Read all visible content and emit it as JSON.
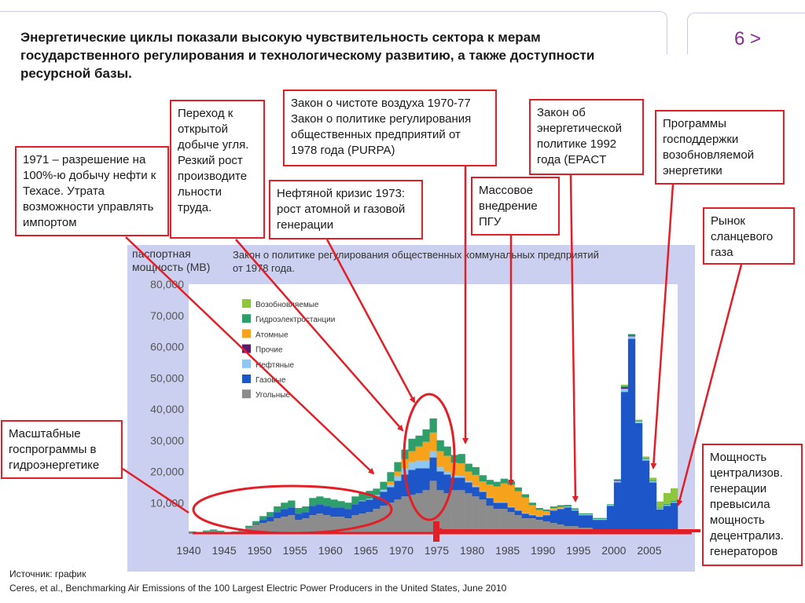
{
  "slide": {
    "title": "Энергетические циклы показали высокую чувствительность сектора к мерам государственного регулирования и технологическому развитию, а также доступности ресурсной базы.",
    "page_number": "6 >",
    "source_line1": "Источник: график",
    "source_line2": "Ceres,  et al., Benchmarking Air Emissions of the 100 Largest Electric Power Producers in the United States, June 2010"
  },
  "callouts": {
    "oil_texas": "1971 – разрешение на 100%-ю добычу нефти к Техасе. Утрата возможности управлять импортом",
    "coal_open": "Переход к открытой добыче угля. Резкий рост производите льности труда.",
    "clean_air": "Закон о чистоте воздуха 1970-77 Закон о политике регулирования общественных предприятий от 1978 года (PURPA)",
    "oil_crisis": "Нефтяной кризис 1973: рост атомной и газовой генерации",
    "epact": "Закон об энергетической политике 1992 года (EPACT",
    "ccgt": "Массовое внедрение ПГУ",
    "renewables_support": "Программы господдержки возобновляемой энергетики",
    "shale_gas": "Рынок сланцевого газа",
    "hydro_programs": "Масштабные госпрограммы в гидроэнергетике",
    "centralized": "Мощность централизов. генерации превысила мощность децентрализ. генераторов"
  },
  "colors": {
    "renewable": "#8dc63f",
    "hydro": "#2e9e6b",
    "nuclear": "#f7a21b",
    "other": "#5c1a73",
    "oil": "#8ec7f2",
    "gas": "#1d56c8",
    "coal": "#8c8c8c",
    "plot_bg": "#ffffff",
    "panel_bg": "#ccd0f0",
    "annotation": "#e21f26"
  },
  "chart_data": {
    "type": "bar",
    "stacked": true,
    "ylabel": "паспортная мощность (МВ)",
    "inner_note": "Закон о политике регулирования общественных коммунальных предприятий от 1978 года.",
    "ylim": [
      0,
      80000
    ],
    "yticks": [
      "80,000",
      "70,000",
      "60,000",
      "50,000",
      "40,000",
      "30,000",
      "20,000",
      "10,000"
    ],
    "xticks": [
      "1940",
      "1945",
      "1950",
      "1955",
      "1960",
      "1965",
      "1970",
      "1975",
      "1980",
      "1985",
      "1990",
      "1995",
      "2000",
      "2005"
    ],
    "legend_position": "upper-left",
    "legend_order": [
      "Возобновляемые",
      "Гидроэлектростанции",
      "Атомные",
      "Прочие",
      "Нефтяные",
      "Газовые",
      "Угольные"
    ],
    "years": [
      1940,
      1941,
      1942,
      1943,
      1944,
      1945,
      1946,
      1947,
      1948,
      1949,
      1950,
      1951,
      1952,
      1953,
      1954,
      1955,
      1956,
      1957,
      1958,
      1959,
      1960,
      1961,
      1962,
      1963,
      1964,
      1965,
      1966,
      1967,
      1968,
      1969,
      1970,
      1971,
      1972,
      1973,
      1974,
      1975,
      1976,
      1977,
      1978,
      1979,
      1980,
      1981,
      1982,
      1983,
      1984,
      1985,
      1986,
      1987,
      1988,
      1989,
      1990,
      1991,
      1992,
      1993,
      1994,
      1995,
      1996,
      1997,
      1998,
      1999,
      2000,
      2001,
      2002,
      2003,
      2004,
      2005,
      2006,
      2007,
      2008
    ],
    "series": [
      {
        "name": "Возобновляемые",
        "values": [
          0,
          0,
          0,
          0,
          0,
          0,
          0,
          0,
          0,
          0,
          0,
          0,
          0,
          0,
          0,
          0,
          0,
          0,
          0,
          0,
          0,
          0,
          0,
          0,
          0,
          0,
          0,
          0,
          0,
          0,
          0,
          0,
          0,
          0,
          0,
          0,
          0,
          0,
          0,
          0,
          0,
          0,
          0,
          0,
          0,
          0,
          0,
          0,
          0,
          0,
          0,
          0,
          0,
          0,
          0,
          0,
          0,
          0,
          0,
          0,
          0,
          500,
          200,
          200,
          500,
          800,
          2000,
          3500,
          4000
        ]
      },
      {
        "name": "Гидроэлектростанции",
        "values": [
          300,
          200,
          300,
          400,
          300,
          200,
          300,
          500,
          500,
          800,
          1200,
          1500,
          1800,
          2000,
          2200,
          1800,
          1800,
          2500,
          2500,
          2500,
          2500,
          2000,
          2000,
          2500,
          2500,
          2500,
          2000,
          2500,
          3000,
          3000,
          3000,
          4000,
          3500,
          4000,
          4500,
          3500,
          3000,
          2500,
          3000,
          2500,
          2500,
          2000,
          1500,
          1500,
          1500,
          1200,
          1200,
          1000,
          800,
          600,
          500,
          500,
          600,
          500,
          400,
          300,
          300,
          300,
          300,
          200,
          200,
          300,
          300,
          300,
          300,
          300,
          300,
          300,
          300
        ]
      },
      {
        "name": "Атомные",
        "values": [
          0,
          0,
          0,
          0,
          0,
          0,
          0,
          0,
          0,
          0,
          0,
          0,
          0,
          0,
          0,
          0,
          0,
          0,
          0,
          0,
          0,
          0,
          0,
          0,
          0,
          0,
          0,
          0,
          1000,
          1500,
          3000,
          3500,
          4500,
          6000,
          6000,
          5000,
          5000,
          4000,
          4000,
          3000,
          3500,
          3000,
          4000,
          5000,
          6000,
          7000,
          6000,
          5000,
          3000,
          2000,
          1000,
          500,
          300,
          0,
          0,
          0,
          0,
          0,
          0,
          0,
          0,
          0,
          0,
          0,
          0,
          0,
          0,
          0,
          0
        ]
      },
      {
        "name": "Прочие",
        "values": [
          0,
          0,
          0,
          0,
          0,
          0,
          0,
          0,
          0,
          0,
          0,
          0,
          0,
          0,
          0,
          0,
          0,
          0,
          0,
          0,
          0,
          0,
          0,
          0,
          0,
          0,
          0,
          0,
          0,
          0,
          0,
          0,
          0,
          0,
          0,
          0,
          0,
          0,
          0,
          0,
          0,
          0,
          0,
          0,
          0,
          0,
          0,
          0,
          0,
          0,
          0,
          0,
          0,
          0,
          0,
          0,
          0,
          0,
          0,
          0,
          300,
          500,
          300,
          0,
          0,
          0,
          0,
          0,
          0
        ]
      },
      {
        "name": "Нефтяные",
        "values": [
          0,
          0,
          0,
          0,
          0,
          0,
          0,
          0,
          0,
          0,
          0,
          0,
          0,
          0,
          0,
          0,
          0,
          0,
          0,
          0,
          0,
          0,
          0,
          0,
          200,
          300,
          500,
          700,
          800,
          1500,
          2000,
          2500,
          2500,
          2500,
          2000,
          1500,
          1000,
          800,
          600,
          500,
          400,
          300,
          300,
          200,
          200,
          200,
          200,
          200,
          200,
          200,
          300,
          300,
          300,
          300,
          300,
          300,
          300,
          300,
          300,
          300,
          500,
          1000,
          800,
          600,
          500,
          400,
          300,
          300,
          300
        ]
      },
      {
        "name": "Газовые",
        "values": [
          0,
          0,
          0,
          0,
          0,
          0,
          0,
          0,
          100,
          300,
          1000,
          1500,
          2000,
          2500,
          2500,
          2000,
          2000,
          3000,
          3000,
          3000,
          3000,
          3000,
          3000,
          3500,
          4000,
          4000,
          4000,
          4500,
          5000,
          6000,
          7000,
          8000,
          8000,
          7000,
          7500,
          6000,
          6000,
          4000,
          4000,
          3500,
          3000,
          2500,
          2500,
          2000,
          2000,
          1500,
          1500,
          1500,
          1000,
          1000,
          2000,
          4000,
          5000,
          6000,
          5000,
          4000,
          4000,
          3000,
          3000,
          8000,
          16000,
          45000,
          62000,
          35000,
          23000,
          16000,
          7000,
          8000,
          9000
        ]
      },
      {
        "name": "Угольные",
        "values": [
          500,
          300,
          800,
          1000,
          700,
          300,
          500,
          1000,
          2000,
          3000,
          3500,
          4000,
          5000,
          5500,
          6000,
          4500,
          5000,
          6000,
          6500,
          6000,
          5500,
          5500,
          5000,
          6000,
          6500,
          7000,
          8000,
          9000,
          10000,
          11000,
          12000,
          12500,
          13000,
          14000,
          17000,
          14000,
          13000,
          14000,
          14000,
          13000,
          12000,
          11000,
          9000,
          8000,
          8000,
          7000,
          6000,
          5000,
          5000,
          4500,
          4000,
          3500,
          3000,
          2500,
          2500,
          2000,
          2000,
          1500,
          1500,
          1000,
          500,
          500,
          500,
          500,
          500,
          500,
          800,
          1000,
          1000
        ]
      }
    ]
  }
}
